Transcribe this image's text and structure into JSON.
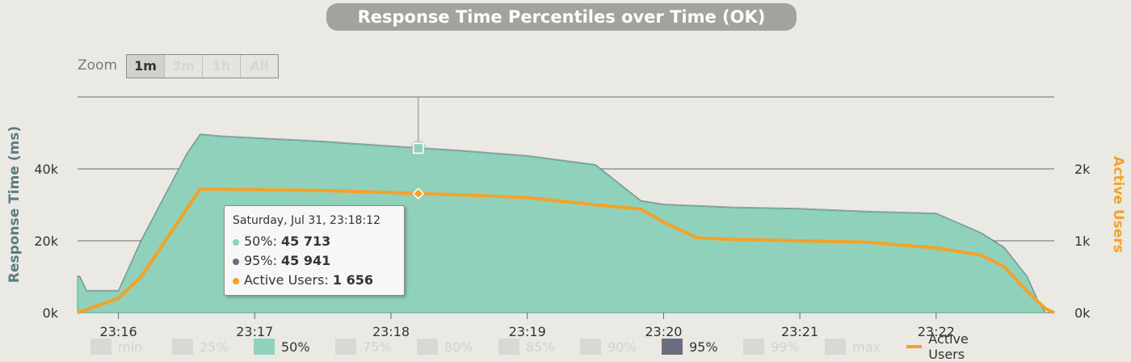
{
  "title": "Response Time Percentiles over Time (OK)",
  "zoom": {
    "label": "Zoom",
    "buttons": [
      {
        "label": "1m",
        "active": true
      },
      {
        "label": "3m",
        "active": false
      },
      {
        "label": "1h",
        "active": false
      },
      {
        "label": "All",
        "active": false
      }
    ]
  },
  "tooltip": {
    "header": "Saturday, Jul 31, 23:18:12",
    "rows": [
      {
        "label": "50%: ",
        "value": "45 713",
        "color": "#8fd1bb"
      },
      {
        "label": "95%: ",
        "value": "45 941",
        "color": "#6b6e80"
      },
      {
        "label": "Active Users: ",
        "value": "1 656",
        "color": "#f4a12a"
      }
    ]
  },
  "legend": [
    {
      "label": "min",
      "enabled": false,
      "color": "#d8d8d4"
    },
    {
      "label": "25%",
      "enabled": false,
      "color": "#d8d8d4"
    },
    {
      "label": "50%",
      "enabled": true,
      "color": "#8fd1bb"
    },
    {
      "label": "75%",
      "enabled": false,
      "color": "#d8d8d4"
    },
    {
      "label": "80%",
      "enabled": false,
      "color": "#d8d8d4"
    },
    {
      "label": "85%",
      "enabled": false,
      "color": "#d8d8d4"
    },
    {
      "label": "90%",
      "enabled": false,
      "color": "#d8d8d4"
    },
    {
      "label": "95%",
      "enabled": true,
      "color": "#6b6e80"
    },
    {
      "label": "99%",
      "enabled": false,
      "color": "#d8d8d4"
    },
    {
      "label": "max",
      "enabled": false,
      "color": "#d8d8d4"
    },
    {
      "label": "Active Users",
      "enabled": true,
      "color": "#f4a12a",
      "line": true
    }
  ],
  "chart_data": {
    "type": "area",
    "title": "Response Time Percentiles over Time (OK)",
    "ylabel": "Response Time (ms)",
    "y2label": "Active Users",
    "ylim": [
      0,
      60000
    ],
    "y2lim": [
      0,
      3000
    ],
    "yticks": [
      {
        "v": 0,
        "label": "0k"
      },
      {
        "v": 20000,
        "label": "20k"
      },
      {
        "v": 40000,
        "label": "40k"
      }
    ],
    "y2ticks": [
      {
        "v": 0,
        "label": "0k"
      },
      {
        "v": 1000,
        "label": "1k"
      },
      {
        "v": 2000,
        "label": "2k"
      }
    ],
    "xlim": [
      "23:15:42",
      "23:22:52"
    ],
    "xticks": [
      "23:16",
      "23:17",
      "23:18",
      "23:19",
      "23:20",
      "23:21",
      "23:22"
    ],
    "grid": true,
    "legend_position": "bottom",
    "colors": {
      "p50": "#8fd1bb",
      "p95": "#6b6e80",
      "users": "#f4a12a"
    },
    "series": [
      {
        "name": "50%",
        "x": [
          "23:15:42",
          "23:15:43",
          "23:15:46",
          "23:16:00",
          "23:16:10",
          "23:16:20",
          "23:16:30",
          "23:16:36",
          "23:16:45",
          "23:17:00",
          "23:17:30",
          "23:18:00",
          "23:18:12",
          "23:18:30",
          "23:19:00",
          "23:19:30",
          "23:19:50",
          "23:20:00",
          "23:20:30",
          "23:21:00",
          "23:21:30",
          "23:22:00",
          "23:22:20",
          "23:22:30",
          "23:22:40",
          "23:22:45",
          "23:22:48"
        ],
        "values": [
          10000,
          10000,
          6000,
          6000,
          20000,
          32000,
          44000,
          49500,
          49000,
          48500,
          47500,
          46200,
          45713,
          45000,
          43500,
          41000,
          31000,
          30000,
          29200,
          28800,
          28000,
          27500,
          22000,
          18000,
          10000,
          3000,
          0
        ]
      },
      {
        "name": "Active Users",
        "x": [
          "23:15:42",
          "23:16:00",
          "23:16:10",
          "23:16:36",
          "23:17:00",
          "23:17:30",
          "23:18:00",
          "23:18:12",
          "23:18:30",
          "23:19:00",
          "23:19:30",
          "23:19:50",
          "23:20:00",
          "23:20:15",
          "23:20:30",
          "23:21:00",
          "23:21:30",
          "23:22:00",
          "23:22:20",
          "23:22:30",
          "23:22:40",
          "23:22:48",
          "23:22:52"
        ],
        "values": [
          0,
          200,
          500,
          1720,
          1710,
          1700,
          1670,
          1656,
          1640,
          1600,
          1500,
          1440,
          1260,
          1040,
          1020,
          1000,
          980,
          900,
          800,
          640,
          300,
          60,
          0
        ]
      }
    ],
    "crosshair_x": "23:18:12"
  }
}
